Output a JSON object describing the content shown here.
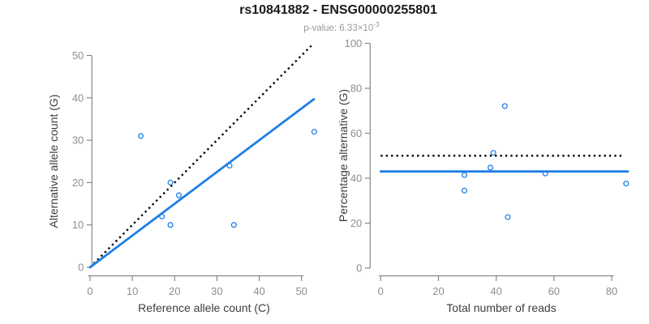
{
  "header": {
    "title": "rs10841882 - ENSG00000255801",
    "pvalue_label": "p-value: 6.33×10",
    "pvalue_exponent": "-3"
  },
  "colors": {
    "point_blue": "#1E7FE5",
    "fit_line_blue": "#1E7FE5",
    "reference_line_black": "#000000",
    "axis_gray": "#888888",
    "tick_label_gray": "#8E8E8E",
    "axis_title_gray": "#3D3D3D",
    "title_black": "#1A1A1A",
    "subtitle_gray": "#999999",
    "background": "#FFFFFF"
  },
  "chart_data": [
    {
      "type": "scatter",
      "panel": "left",
      "xlabel": "Reference allele count (C)",
      "ylabel": "Alternative allele count (G)",
      "xticks": [
        0,
        10,
        20,
        30,
        40,
        50
      ],
      "yticks": [
        0,
        10,
        20,
        30,
        40,
        50
      ],
      "xlim": [
        0,
        53
      ],
      "ylim": [
        0,
        53
      ],
      "grid": false,
      "legend": "none",
      "points": {
        "x": [
          12,
          17,
          19,
          19,
          21,
          33,
          34,
          53
        ],
        "y": [
          31,
          12,
          10,
          20,
          17,
          24,
          10,
          32
        ]
      },
      "reference_line": {
        "type": "linear",
        "slope": 1,
        "intercept": 0,
        "style": "dotted",
        "x_range": [
          0,
          52.6
        ]
      },
      "fit_line": {
        "type": "linear",
        "slope": 0.75,
        "intercept": 0,
        "style": "solid",
        "x_range": [
          0,
          52.9
        ]
      }
    },
    {
      "type": "scatter",
      "panel": "right",
      "xlabel": "Total number of reads",
      "ylabel": "Percentage alternative (G)",
      "xticks": [
        0,
        20,
        40,
        60,
        80
      ],
      "yticks": [
        0,
        20,
        40,
        60,
        80,
        100
      ],
      "xlim": [
        0,
        86
      ],
      "ylim": [
        0,
        100
      ],
      "grid": false,
      "legend": "none",
      "points": {
        "x": [
          43,
          29,
          29,
          39,
          38,
          57,
          44,
          85
        ],
        "y": [
          72.1,
          41.4,
          34.5,
          51.3,
          44.7,
          42.1,
          22.7,
          37.6
        ]
      },
      "reference_line": {
        "type": "horizontal",
        "y": 50,
        "style": "dotted",
        "x_range": [
          0,
          84
        ]
      },
      "fit_line": {
        "type": "horizontal",
        "y": 43,
        "style": "solid",
        "x_range": [
          0,
          85.6
        ]
      }
    }
  ]
}
